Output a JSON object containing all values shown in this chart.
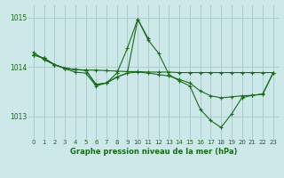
{
  "title": "Graphe pression niveau de la mer (hPa)",
  "bg_color": "#cce8e8",
  "grid_color": "#aacccc",
  "line_color": "#1a6b1a",
  "xlim": [
    -0.5,
    23.5
  ],
  "ylim": [
    1012.55,
    1015.25
  ],
  "yticks": [
    1013,
    1014,
    1015
  ],
  "xticks": [
    0,
    1,
    2,
    3,
    4,
    5,
    6,
    7,
    8,
    9,
    10,
    11,
    12,
    13,
    14,
    15,
    16,
    17,
    18,
    19,
    20,
    21,
    22,
    23
  ],
  "series": [
    {
      "x": [
        0,
        1,
        2,
        3,
        4,
        5,
        6,
        7,
        8,
        9,
        10,
        11
      ],
      "y": [
        1014.3,
        1014.15,
        1014.05,
        1013.97,
        1013.9,
        1013.88,
        1013.62,
        1013.68,
        1013.88,
        1014.38,
        1014.97,
        1014.58
      ]
    },
    {
      "x": [
        0,
        1,
        2,
        3,
        4,
        5,
        6,
        7,
        8,
        9,
        10,
        11,
        12,
        13,
        14,
        15,
        16,
        17,
        18,
        19,
        20,
        21,
        22,
        23
      ],
      "y": [
        1014.25,
        1014.18,
        1014.05,
        1013.98,
        1013.95,
        1013.94,
        1013.94,
        1013.93,
        1013.92,
        1013.91,
        1013.91,
        1013.9,
        1013.9,
        1013.9,
        1013.89,
        1013.89,
        1013.89,
        1013.89,
        1013.89,
        1013.89,
        1013.89,
        1013.89,
        1013.89,
        1013.89
      ]
    },
    {
      "x": [
        0,
        1,
        2,
        3,
        4,
        5,
        6,
        7,
        8,
        9,
        10,
        11,
        12,
        13,
        14,
        15,
        16,
        17,
        18,
        19,
        20,
        21,
        22,
        23
      ],
      "y": [
        1014.25,
        1014.18,
        1014.05,
        1013.98,
        1013.95,
        1013.94,
        1013.65,
        1013.68,
        1013.8,
        1013.88,
        1013.9,
        1013.88,
        1013.85,
        1013.82,
        1013.75,
        1013.68,
        1013.52,
        1013.42,
        1013.38,
        1013.4,
        1013.42,
        1013.43,
        1013.45,
        1013.88
      ]
    },
    {
      "x": [
        0,
        1,
        2,
        3,
        4,
        5,
        6,
        7,
        8,
        9,
        10,
        11,
        12,
        13,
        14,
        15,
        16,
        17,
        18,
        19,
        20,
        21,
        22,
        23
      ],
      "y": [
        1014.25,
        1014.18,
        1014.05,
        1013.98,
        1013.95,
        1013.94,
        1013.65,
        1013.68,
        1013.8,
        1013.88,
        1014.97,
        1014.55,
        1014.28,
        1013.85,
        1013.72,
        1013.62,
        1013.15,
        1012.92,
        1012.78,
        1013.05,
        1013.38,
        1013.43,
        1013.46,
        1013.88
      ]
    }
  ]
}
